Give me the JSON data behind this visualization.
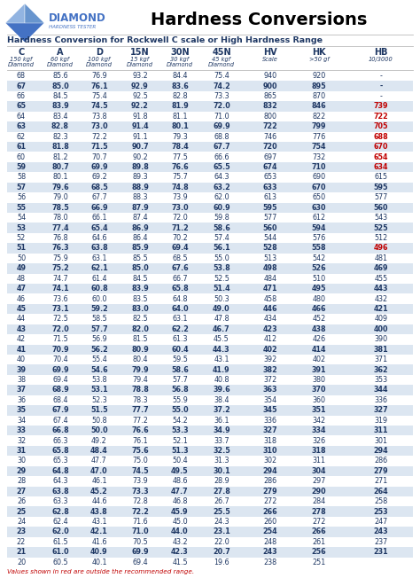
{
  "title": "Hardness Conversions",
  "subtitle": "Hardness Conversion for Rockwell C scale or High Hardness Range",
  "columns": [
    "C",
    "A",
    "D",
    "15N",
    "30N",
    "45N",
    "HV",
    "HK",
    "HB"
  ],
  "col_subtitles": [
    "150 kgf\nDiamond",
    "60 kgf\nDiamond",
    "100 kgf\nDiamond",
    "15 kgf\nDiamond",
    "30 kgf\nDiamond",
    "45 kgf\nDiamond",
    "Scale",
    ">50 gf",
    "10/3000"
  ],
  "rows": [
    [
      68,
      85.6,
      76.9,
      93.2,
      84.4,
      75.4,
      940,
      920,
      "-"
    ],
    [
      67,
      85.0,
      76.1,
      92.9,
      83.6,
      74.2,
      900,
      895,
      "-"
    ],
    [
      66,
      84.5,
      75.4,
      92.5,
      82.8,
      73.3,
      865,
      870,
      "-"
    ],
    [
      65,
      83.9,
      74.5,
      92.2,
      81.9,
      72.0,
      832,
      846,
      "739"
    ],
    [
      64,
      83.4,
      73.8,
      91.8,
      81.1,
      71.0,
      800,
      822,
      "722"
    ],
    [
      63,
      82.8,
      73.0,
      91.4,
      80.1,
      69.9,
      722,
      799,
      "705"
    ],
    [
      62,
      82.3,
      72.2,
      91.1,
      79.3,
      68.8,
      746,
      776,
      "688"
    ],
    [
      61,
      81.8,
      71.5,
      90.7,
      78.4,
      67.7,
      720,
      754,
      "670"
    ],
    [
      60,
      81.2,
      70.7,
      90.2,
      77.5,
      66.6,
      697,
      732,
      "654"
    ],
    [
      59,
      80.7,
      69.9,
      89.8,
      76.6,
      65.5,
      674,
      710,
      "634"
    ],
    [
      58,
      80.1,
      69.2,
      89.3,
      75.7,
      64.3,
      653,
      690,
      "615"
    ],
    [
      57,
      79.6,
      68.5,
      88.9,
      74.8,
      63.2,
      633,
      670,
      "595"
    ],
    [
      56,
      79.0,
      67.7,
      88.3,
      73.9,
      62.0,
      613,
      650,
      "577"
    ],
    [
      55,
      78.5,
      66.9,
      87.9,
      73.0,
      60.9,
      595,
      630,
      "560"
    ],
    [
      54,
      78.0,
      66.1,
      87.4,
      72.0,
      59.8,
      577,
      612,
      "543"
    ],
    [
      53,
      77.4,
      65.4,
      86.9,
      71.2,
      58.6,
      560,
      594,
      "525"
    ],
    [
      52,
      76.8,
      64.6,
      86.4,
      70.2,
      57.4,
      544,
      576,
      "512"
    ],
    [
      51,
      76.3,
      63.8,
      85.9,
      69.4,
      56.1,
      528,
      558,
      "496"
    ],
    [
      50,
      75.9,
      63.1,
      85.5,
      68.5,
      55.0,
      513,
      542,
      "481"
    ],
    [
      49,
      75.2,
      62.1,
      85.0,
      67.6,
      53.8,
      498,
      526,
      "469"
    ],
    [
      48,
      74.7,
      61.4,
      84.5,
      66.7,
      52.5,
      484,
      510,
      "455"
    ],
    [
      47,
      74.1,
      60.8,
      83.9,
      65.8,
      51.4,
      471,
      495,
      "443"
    ],
    [
      46,
      73.6,
      60.0,
      83.5,
      64.8,
      50.3,
      458,
      480,
      "432"
    ],
    [
      45,
      73.1,
      59.2,
      83.0,
      64.0,
      49.0,
      446,
      466,
      "421"
    ],
    [
      44,
      72.5,
      58.5,
      82.5,
      63.1,
      47.8,
      434,
      452,
      "409"
    ],
    [
      43,
      72.0,
      57.7,
      82.0,
      62.2,
      46.7,
      423,
      438,
      "400"
    ],
    [
      42,
      71.5,
      56.9,
      81.5,
      61.3,
      45.5,
      412,
      426,
      "390"
    ],
    [
      41,
      70.9,
      56.2,
      80.9,
      60.4,
      44.3,
      402,
      414,
      "381"
    ],
    [
      40,
      70.4,
      55.4,
      80.4,
      59.5,
      43.1,
      392,
      402,
      "371"
    ],
    [
      39,
      69.9,
      54.6,
      79.9,
      58.6,
      41.9,
      382,
      391,
      "362"
    ],
    [
      38,
      69.4,
      53.8,
      79.4,
      57.7,
      40.8,
      372,
      380,
      "353"
    ],
    [
      37,
      68.9,
      53.1,
      78.8,
      56.8,
      39.6,
      363,
      370,
      "344"
    ],
    [
      36,
      68.4,
      52.3,
      78.3,
      55.9,
      38.4,
      354,
      360,
      "336"
    ],
    [
      35,
      67.9,
      51.5,
      77.7,
      55.0,
      37.2,
      345,
      351,
      "327"
    ],
    [
      34,
      67.4,
      50.8,
      77.2,
      54.2,
      36.1,
      336,
      342,
      "319"
    ],
    [
      33,
      66.8,
      50.0,
      76.6,
      53.3,
      34.9,
      327,
      334,
      "311"
    ],
    [
      32,
      66.3,
      49.2,
      76.1,
      52.1,
      33.7,
      318,
      326,
      "301"
    ],
    [
      31,
      65.8,
      48.4,
      75.6,
      51.3,
      32.5,
      310,
      318,
      "294"
    ],
    [
      30,
      65.3,
      47.7,
      75.0,
      50.4,
      31.3,
      302,
      311,
      "286"
    ],
    [
      29,
      64.8,
      47.0,
      74.5,
      49.5,
      30.1,
      294,
      304,
      "279"
    ],
    [
      28,
      64.3,
      46.1,
      73.9,
      48.6,
      28.9,
      286,
      297,
      "271"
    ],
    [
      27,
      63.8,
      45.2,
      73.3,
      47.7,
      27.8,
      279,
      290,
      "264"
    ],
    [
      26,
      63.3,
      44.6,
      72.8,
      46.8,
      26.7,
      272,
      284,
      "258"
    ],
    [
      25,
      62.8,
      43.8,
      72.2,
      45.9,
      25.5,
      266,
      278,
      "253"
    ],
    [
      24,
      62.4,
      43.1,
      71.6,
      45.0,
      24.3,
      260,
      272,
      "247"
    ],
    [
      23,
      62.0,
      42.1,
      71.0,
      44.0,
      23.1,
      254,
      266,
      "243"
    ],
    [
      22,
      61.5,
      41.6,
      70.5,
      43.2,
      22.0,
      248,
      261,
      "237"
    ],
    [
      21,
      61.0,
      40.9,
      69.9,
      42.3,
      20.7,
      243,
      256,
      "231"
    ],
    [
      20,
      60.5,
      40.1,
      69.4,
      41.5,
      19.6,
      238,
      251,
      ""
    ]
  ],
  "red_hb_c_vals": [
    65,
    64,
    63,
    62,
    61,
    60,
    59,
    51
  ],
  "note": "Values shown in red are outside the recommended range.",
  "bg_color": "#ffffff",
  "row_alt_color": "#dce6f1",
  "row_normal_color": "#ffffff",
  "text_color": "#1f3864",
  "red_color": "#c00000",
  "header_color": "#1f3864",
  "diamond_color": "#4472c4",
  "diamond_highlight": "#92b4e1"
}
